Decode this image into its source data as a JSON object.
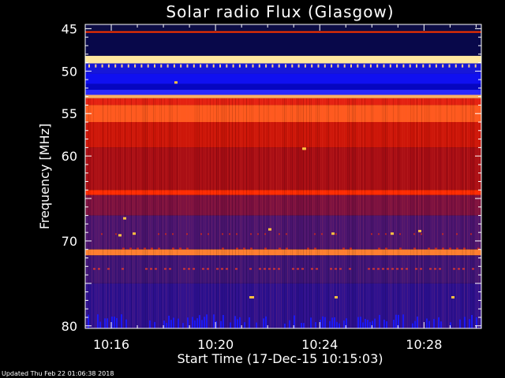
{
  "chart_data": {
    "type": "heatmap",
    "title": "Solar radio Flux (Glasgow)",
    "xlabel": "Start Time (17-Dec-15 10:15:03)",
    "ylabel": "Frequency [MHz]",
    "x_ticks": [
      "10:16",
      "10:20",
      "10:24",
      "10:28"
    ],
    "x_tick_minutes": [
      1,
      5,
      9,
      13
    ],
    "x_range_minutes": [
      0,
      15.2
    ],
    "y_ticks": [
      45,
      50,
      55,
      60,
      65,
      70,
      75,
      80
    ],
    "y_tick_labels": [
      "45",
      "50",
      "55",
      "60",
      "",
      "70",
      "",
      "80"
    ],
    "y_range": [
      44.5,
      80.3
    ],
    "bands": [
      {
        "f0": 44.5,
        "f1": 45.3,
        "color": "#0d0d45"
      },
      {
        "f0": 45.3,
        "f1": 45.5,
        "color": "#ff3300"
      },
      {
        "f0": 45.5,
        "f1": 48.2,
        "color": "#08084a"
      },
      {
        "f0": 48.2,
        "f1": 49.1,
        "color": "#ffe8a0"
      },
      {
        "f0": 49.1,
        "f1": 50.3,
        "color": "#1717d8"
      },
      {
        "f0": 50.3,
        "f1": 51.5,
        "color": "#1010f0"
      },
      {
        "f0": 51.5,
        "f1": 52.2,
        "color": "#0606c0"
      },
      {
        "f0": 52.2,
        "f1": 52.8,
        "color": "#2828ff"
      },
      {
        "f0": 52.8,
        "f1": 53.2,
        "color": "#ffb060"
      },
      {
        "f0": 53.2,
        "f1": 54.0,
        "color": "#e42010"
      },
      {
        "f0": 54.0,
        "f1": 56.0,
        "color": "#ff5a1e"
      },
      {
        "f0": 56.0,
        "f1": 59.0,
        "color": "#cc1508"
      },
      {
        "f0": 59.0,
        "f1": 64.0,
        "color": "#a80d14"
      },
      {
        "f0": 64.0,
        "f1": 64.6,
        "color": "#ff2a00"
      },
      {
        "f0": 64.6,
        "f1": 67.0,
        "color": "#7a1040"
      },
      {
        "f0": 67.0,
        "f1": 71.0,
        "color": "#4a1470"
      },
      {
        "f0": 71.0,
        "f1": 71.7,
        "color": "#ff8030"
      },
      {
        "f0": 71.7,
        "f1": 75.0,
        "color": "#3d1478"
      },
      {
        "f0": 75.0,
        "f1": 80.3,
        "color": "#2c1090"
      }
    ],
    "colormap": "blue-red-yellow-white"
  },
  "footer": {
    "updated": "Updated Thu Feb 22 01:06:38 2018"
  }
}
